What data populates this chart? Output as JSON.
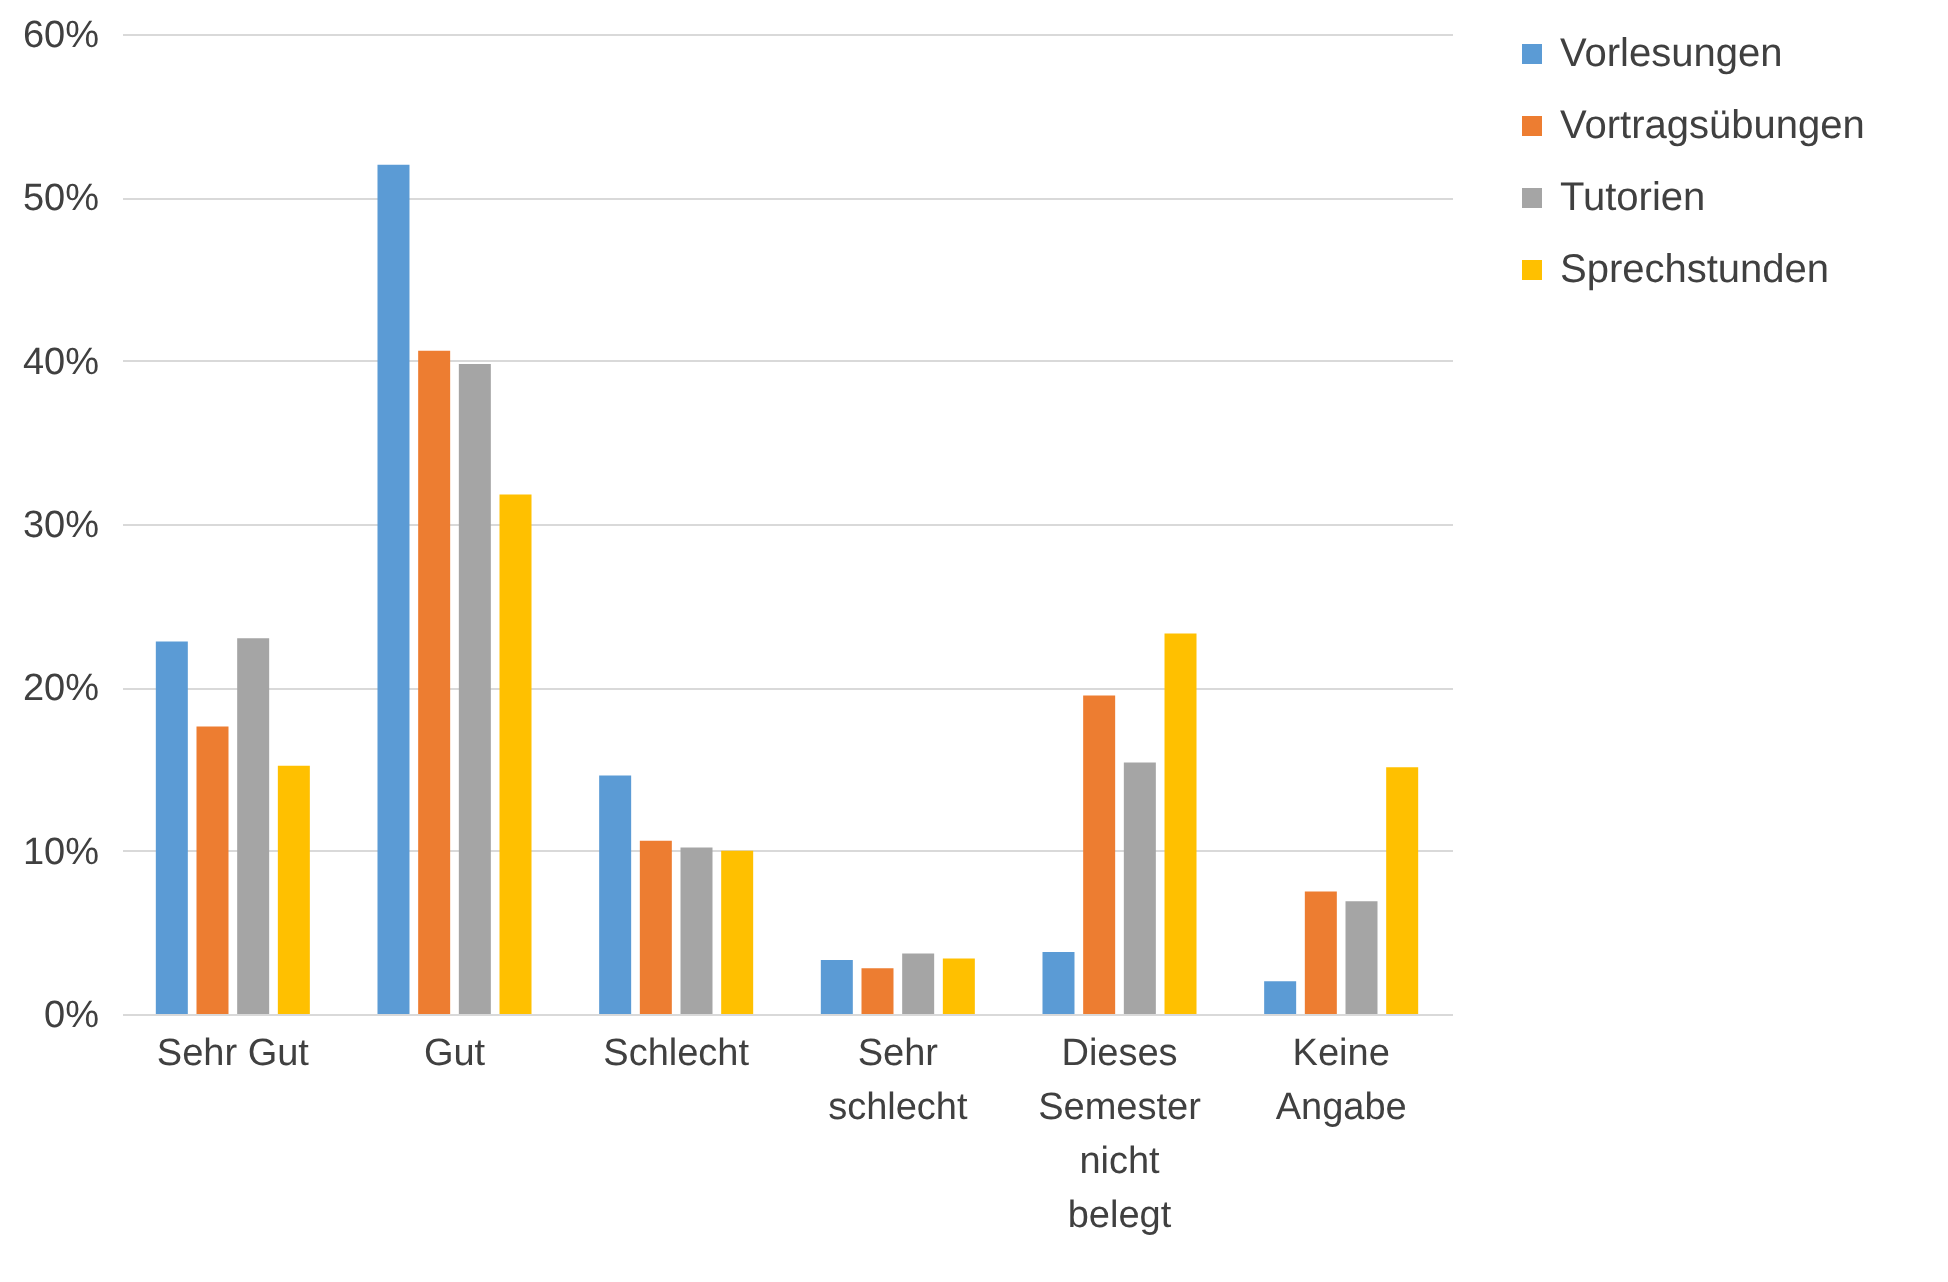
{
  "chart_data": {
    "type": "bar",
    "categories": [
      "Sehr Gut",
      "Gut",
      "Schlecht",
      "Sehr schlecht",
      "Dieses Semester nicht belegt",
      "Keine Angabe"
    ],
    "series": [
      {
        "name": "Vorlesungen",
        "color": "#5b9bd5",
        "values": [
          22.8,
          52.0,
          14.6,
          3.3,
          3.8,
          2.0
        ]
      },
      {
        "name": "Vortragsübungen",
        "color": "#ed7d31",
        "values": [
          17.6,
          40.6,
          10.6,
          2.8,
          19.5,
          7.5
        ]
      },
      {
        "name": "Tutorien",
        "color": "#a5a5a5",
        "values": [
          23.0,
          39.8,
          10.2,
          3.7,
          15.4,
          6.9
        ]
      },
      {
        "name": "Sprechstunden",
        "color": "#ffc000",
        "values": [
          15.2,
          31.8,
          10.0,
          3.4,
          23.3,
          15.1
        ]
      }
    ],
    "ylim": [
      0,
      60
    ],
    "yticks": [
      {
        "value": 0,
        "label": "0%"
      },
      {
        "value": 10,
        "label": "10%"
      },
      {
        "value": 20,
        "label": "20%"
      },
      {
        "value": 30,
        "label": "30%"
      },
      {
        "value": 40,
        "label": "40%"
      },
      {
        "value": 50,
        "label": "50%"
      },
      {
        "value": 60,
        "label": "60%"
      }
    ],
    "grid": "y",
    "legend": "right"
  }
}
